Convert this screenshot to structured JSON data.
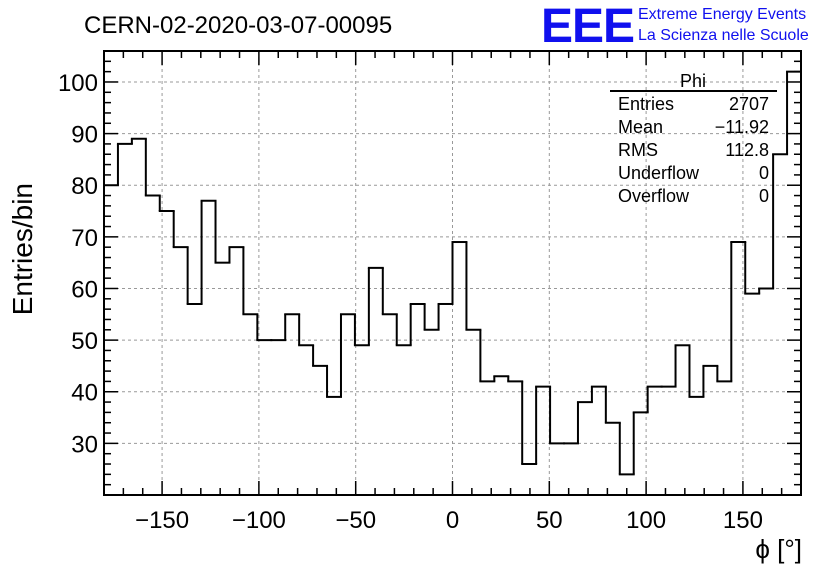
{
  "header": {
    "run_title": "CERN-02-2020-03-07-00095",
    "logo_letters": "EEE",
    "logo_line1": "Extreme Energy Events",
    "logo_line2": "La Scienza nelle Scuole",
    "logo_color": "#1010ee"
  },
  "stats": {
    "title": "Phi",
    "rows": [
      {
        "label": "Entries",
        "value": "2707"
      },
      {
        "label": "Mean",
        "value": "−11.92"
      },
      {
        "label": "RMS",
        "value": "112.8"
      },
      {
        "label": "Underflow",
        "value": "0"
      },
      {
        "label": "Overflow",
        "value": "0"
      }
    ]
  },
  "chart_data": {
    "type": "histogram",
    "xlabel": "ϕ [°]",
    "ylabel": "Entries/bin",
    "xlim": [
      -180,
      180
    ],
    "ylim": [
      20,
      106
    ],
    "bin_width": 7.2,
    "bin_edges_start": -180,
    "x_ticks": [
      -150,
      -100,
      -50,
      0,
      50,
      100,
      150
    ],
    "x_tick_labels": [
      "−150",
      "−100",
      "−50",
      "0",
      "50",
      "100",
      "150"
    ],
    "y_ticks": [
      30,
      40,
      50,
      60,
      70,
      80,
      90,
      100
    ],
    "y_tick_labels": [
      "30",
      "40",
      "50",
      "60",
      "70",
      "80",
      "90",
      "100"
    ],
    "values": [
      80,
      88,
      89,
      78,
      75,
      68,
      57,
      77,
      65,
      68,
      55,
      50,
      50,
      55,
      49,
      45,
      39,
      55,
      49,
      64,
      55,
      49,
      57,
      52,
      57,
      69,
      52,
      42,
      43,
      42,
      26,
      41,
      30,
      30,
      38,
      41,
      34,
      24,
      36,
      41,
      41,
      49,
      39,
      45,
      42,
      69,
      59,
      60,
      86,
      102
    ],
    "grid": true,
    "line_color": "#000000",
    "grid_color": "#999999"
  }
}
